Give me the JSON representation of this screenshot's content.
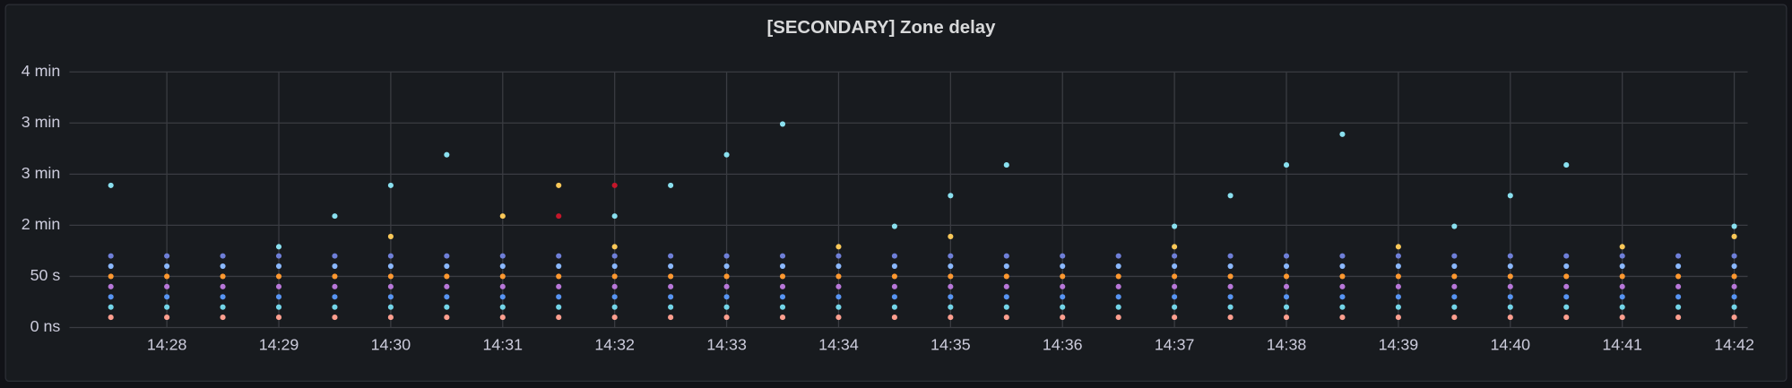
{
  "chart_data": {
    "type": "scatter",
    "title": "[SECONDARY] Zone delay",
    "x": [
      867.5,
      868,
      868.5,
      869,
      869.5,
      870,
      870.5,
      871,
      871.5,
      872,
      872.5,
      873,
      873.5,
      874,
      874.5,
      875,
      875.5,
      876,
      876.5,
      877,
      877.5,
      878,
      878.5,
      879,
      879.5,
      880,
      880.5,
      881,
      881.5,
      882
    ],
    "xlim": [
      867.13,
      882.12
    ],
    "xticks": [
      {
        "value": 868,
        "label": "14:28"
      },
      {
        "value": 869,
        "label": "14:29"
      },
      {
        "value": 870,
        "label": "14:30"
      },
      {
        "value": 871,
        "label": "14:31"
      },
      {
        "value": 872,
        "label": "14:32"
      },
      {
        "value": 873,
        "label": "14:33"
      },
      {
        "value": 874,
        "label": "14:34"
      },
      {
        "value": 875,
        "label": "14:35"
      },
      {
        "value": 876,
        "label": "14:36"
      },
      {
        "value": 877,
        "label": "14:37"
      },
      {
        "value": 878,
        "label": "14:38"
      },
      {
        "value": 879,
        "label": "14:39"
      },
      {
        "value": 880,
        "label": "14:40"
      },
      {
        "value": 881,
        "label": "14:41"
      },
      {
        "value": 882,
        "label": "14:42"
      }
    ],
    "ylim": [
      0,
      250
    ],
    "yticks": [
      {
        "value": 0,
        "label": "0 ns"
      },
      {
        "value": 50,
        "label": "50 s"
      },
      {
        "value": 100,
        "label": "2 min"
      },
      {
        "value": 150,
        "label": "3 min"
      },
      {
        "value": 200,
        "label": "3 min"
      },
      {
        "value": 250,
        "label": "4 min"
      }
    ],
    "grid": true,
    "series": [
      {
        "color": "#ff9f8f",
        "values": [
          10,
          10,
          10,
          10,
          10,
          10,
          10,
          10,
          10,
          10,
          10,
          10,
          10,
          10,
          10,
          10,
          10,
          10,
          10,
          10,
          10,
          10,
          10,
          10,
          10,
          10,
          10,
          10,
          10,
          10
        ]
      },
      {
        "color": "#73d5e8",
        "values": [
          20,
          20,
          20,
          20,
          20,
          20,
          20,
          20,
          20,
          20,
          20,
          20,
          20,
          20,
          20,
          20,
          20,
          20,
          20,
          20,
          20,
          20,
          20,
          20,
          20,
          20,
          20,
          20,
          20,
          20
        ]
      },
      {
        "color": "#5794f2",
        "values": [
          30,
          30,
          30,
          30,
          30,
          30,
          30,
          30,
          30,
          30,
          30,
          30,
          30,
          30,
          30,
          30,
          30,
          30,
          30,
          30,
          30,
          30,
          30,
          30,
          30,
          30,
          30,
          30,
          30,
          30
        ]
      },
      {
        "color": "#b877d9",
        "values": [
          40,
          40,
          40,
          40,
          40,
          40,
          40,
          40,
          40,
          40,
          40,
          40,
          40,
          40,
          40,
          40,
          40,
          40,
          40,
          40,
          40,
          40,
          40,
          40,
          40,
          40,
          40,
          40,
          40,
          40
        ]
      },
      {
        "color": "#ff9830",
        "values": [
          50,
          50,
          50,
          50,
          50,
          50,
          50,
          50,
          50,
          50,
          50,
          50,
          50,
          50,
          50,
          50,
          50,
          50,
          50,
          50,
          50,
          50,
          50,
          50,
          50,
          50,
          50,
          50,
          50,
          50
        ]
      },
      {
        "color": "#8ab8ff",
        "values": [
          60,
          60,
          60,
          60,
          60,
          60,
          60,
          60,
          60,
          60,
          60,
          60,
          60,
          60,
          60,
          60,
          60,
          60,
          60,
          60,
          60,
          60,
          60,
          60,
          60,
          60,
          60,
          60,
          60,
          60
        ]
      },
      {
        "color": "#6e7fd8",
        "values": [
          70,
          70,
          70,
          70,
          70,
          70,
          70,
          70,
          70,
          70,
          70,
          70,
          70,
          70,
          70,
          70,
          70,
          70,
          70,
          70,
          70,
          70,
          70,
          70,
          70,
          70,
          70,
          70,
          70,
          70
        ]
      },
      {
        "color": "#8ae0ef",
        "values": [
          139,
          null,
          null,
          79,
          109,
          139,
          169,
          null,
          null,
          109,
          139,
          169,
          199,
          null,
          99,
          129,
          159,
          null,
          null,
          99,
          129,
          159,
          189,
          null,
          99,
          129,
          159,
          null,
          null,
          99
        ]
      },
      {
        "color": "#fac858",
        "values": [
          null,
          null,
          null,
          null,
          null,
          89,
          null,
          109,
          139,
          79,
          null,
          null,
          null,
          79,
          null,
          89,
          null,
          null,
          null,
          79,
          null,
          null,
          null,
          79,
          null,
          null,
          null,
          79,
          null,
          89
        ]
      },
      {
        "color": "#c4162a",
        "values": [
          null,
          null,
          null,
          null,
          null,
          null,
          null,
          null,
          109,
          139,
          null,
          null,
          null,
          null,
          null,
          null,
          null,
          null,
          null,
          null,
          null,
          null,
          null,
          null,
          null,
          null,
          null,
          null,
          null,
          null
        ]
      }
    ]
  }
}
